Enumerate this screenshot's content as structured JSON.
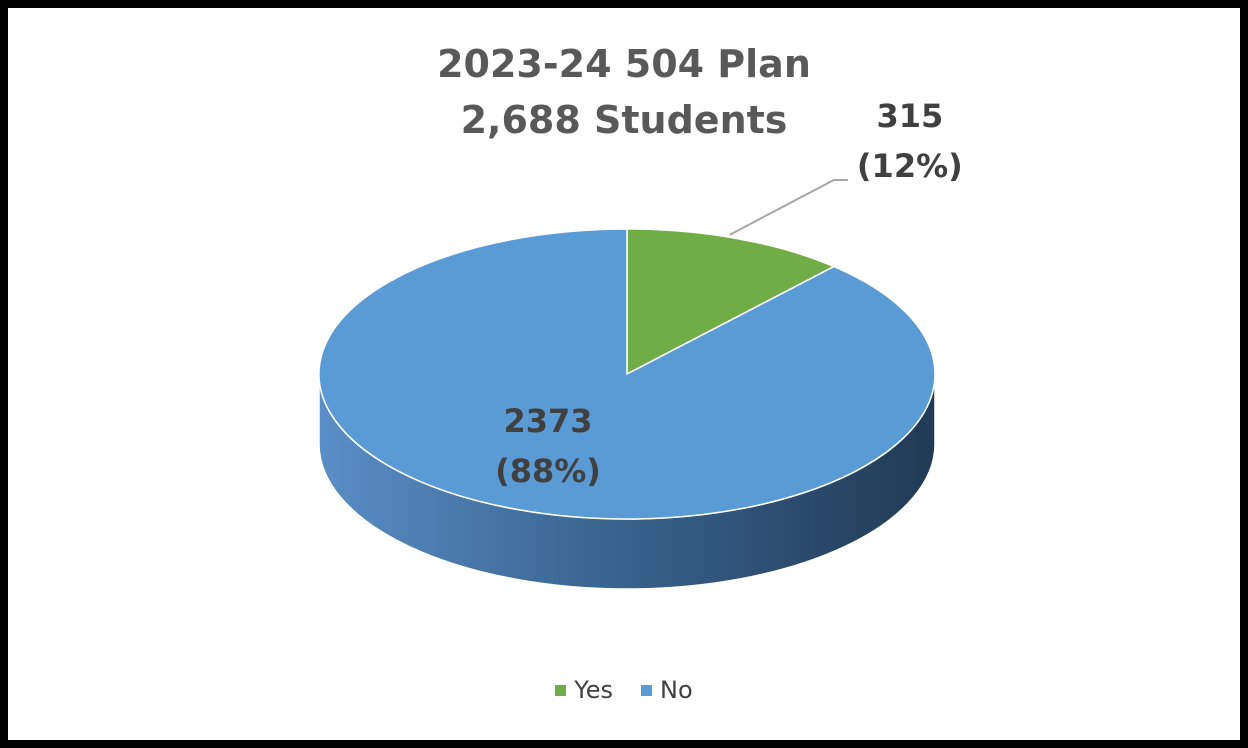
{
  "chart_data": {
    "type": "pie",
    "title": [
      "2023-24 504 Plan",
      "2,688 Students"
    ],
    "slices": [
      {
        "label": "Yes",
        "value": 315,
        "percent": "12%",
        "color": "#70AD47"
      },
      {
        "label": "No",
        "value": 2373,
        "percent": "88%",
        "color": "#5B9BD5"
      }
    ],
    "data_labels": {
      "yes": {
        "value": "315",
        "percent": "(12%)"
      },
      "no": {
        "value": "2373",
        "percent": "(88%)"
      }
    },
    "legend": {
      "position": "bottom",
      "items": [
        {
          "label": "Yes",
          "color": "#70AD47"
        },
        {
          "label": "No",
          "color": "#5B9BD5"
        }
      ]
    },
    "style": "3d-pie"
  }
}
